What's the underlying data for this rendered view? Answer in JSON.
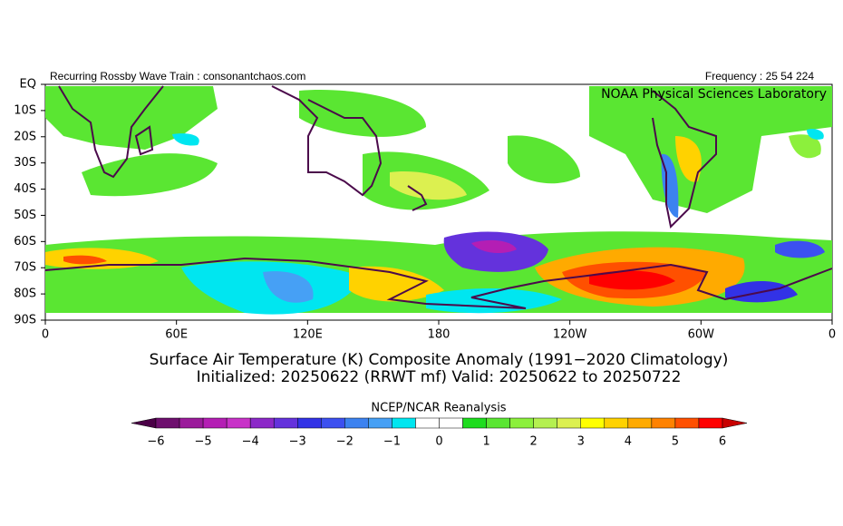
{
  "header": {
    "left": "Recurring Rossby Wave Train : consonantchaos.com",
    "right": "Frequency : 25 54 224",
    "lab": "NOAA Physical Sciences Laboratory"
  },
  "map": {
    "lat_labels": [
      "EQ",
      "10S",
      "20S",
      "30S",
      "40S",
      "50S",
      "60S",
      "70S",
      "80S",
      "90S"
    ],
    "lon_labels": [
      "0",
      "60E",
      "120E",
      "180",
      "120W",
      "60W",
      "0"
    ]
  },
  "title": [
    "Surface Air Temperature (K) Composite Anomaly (1991−2020 Climatology)",
    "Initialized: 20250622 (RRWT mf) Valid: 20250622 to 20250722"
  ],
  "colorbar": {
    "title": "NCEP/NCAR Reanalysis",
    "labels": [
      "−6",
      "−5",
      "−4",
      "−3",
      "−2",
      "−1",
      "0",
      "1",
      "2",
      "3",
      "4",
      "5",
      "6"
    ],
    "colors": [
      "#4b0047",
      "#6e0f6e",
      "#9b1b9b",
      "#b41eb4",
      "#c832c8",
      "#8c28c8",
      "#6432dc",
      "#3232e6",
      "#3c50f0",
      "#3c82f0",
      "#46a0f5",
      "#00e6f0",
      "#ffffff",
      "#ffffff",
      "#1edc1e",
      "#5ae632",
      "#8cf03c",
      "#b4f050",
      "#dcf050",
      "#ffff00",
      "#ffd200",
      "#ffaa00",
      "#ff8200",
      "#ff5000",
      "#ff0000",
      "#c80000"
    ]
  }
}
